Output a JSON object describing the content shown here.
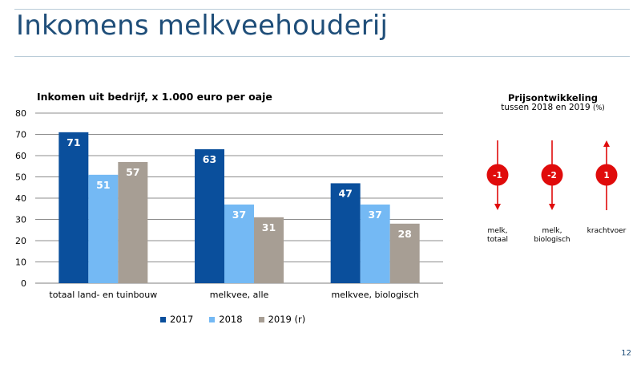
{
  "slide": {
    "title": "Inkomens melkveehouderij",
    "page_number": "12"
  },
  "colors": {
    "title": "#1f4e79",
    "s2017": "#0a4f9c",
    "s2018": "#74b9f4",
    "s2019": "#a79e94",
    "arrow": "#e00b0b"
  },
  "chart_data": {
    "type": "bar",
    "title": "Inkomen uit bedrijf, x 1.000 euro per oaje",
    "xlabel": "",
    "ylabel": "",
    "ylim": [
      0,
      80
    ],
    "yticks": [
      "0",
      "10",
      "20",
      "30",
      "40",
      "50",
      "60",
      "70",
      "80"
    ],
    "grid": true,
    "legend_position": "bottom",
    "categories": [
      "totaal land- en tuinbouw",
      "melkvee, alle",
      "melkvee, biologisch"
    ],
    "series": [
      {
        "name": "2017",
        "color": "#0a4f9c",
        "values": [
          71,
          63,
          47
        ],
        "labels": [
          "71",
          "63",
          "47"
        ]
      },
      {
        "name": "2018",
        "color": "#74b9f4",
        "values": [
          51,
          37,
          37
        ],
        "labels": [
          "51",
          "37",
          "37"
        ]
      },
      {
        "name": "2019 (r)",
        "color": "#a79e94",
        "values": [
          57,
          31,
          28
        ],
        "labels": [
          "57",
          "31",
          "28"
        ]
      }
    ]
  },
  "price_panel": {
    "title": "Prijsontwikkeling",
    "subtitle": "tussen 2018 en 2019",
    "unit": "(%)",
    "items": [
      {
        "value": "-1",
        "direction": "down",
        "label_line1": "melk,",
        "label_line2": "totaal"
      },
      {
        "value": "-2",
        "direction": "down",
        "label_line1": "melk,",
        "label_line2": "biologisch"
      },
      {
        "value": "1",
        "direction": "up",
        "label_line1": "krachtvoer",
        "label_line2": ""
      }
    ]
  }
}
